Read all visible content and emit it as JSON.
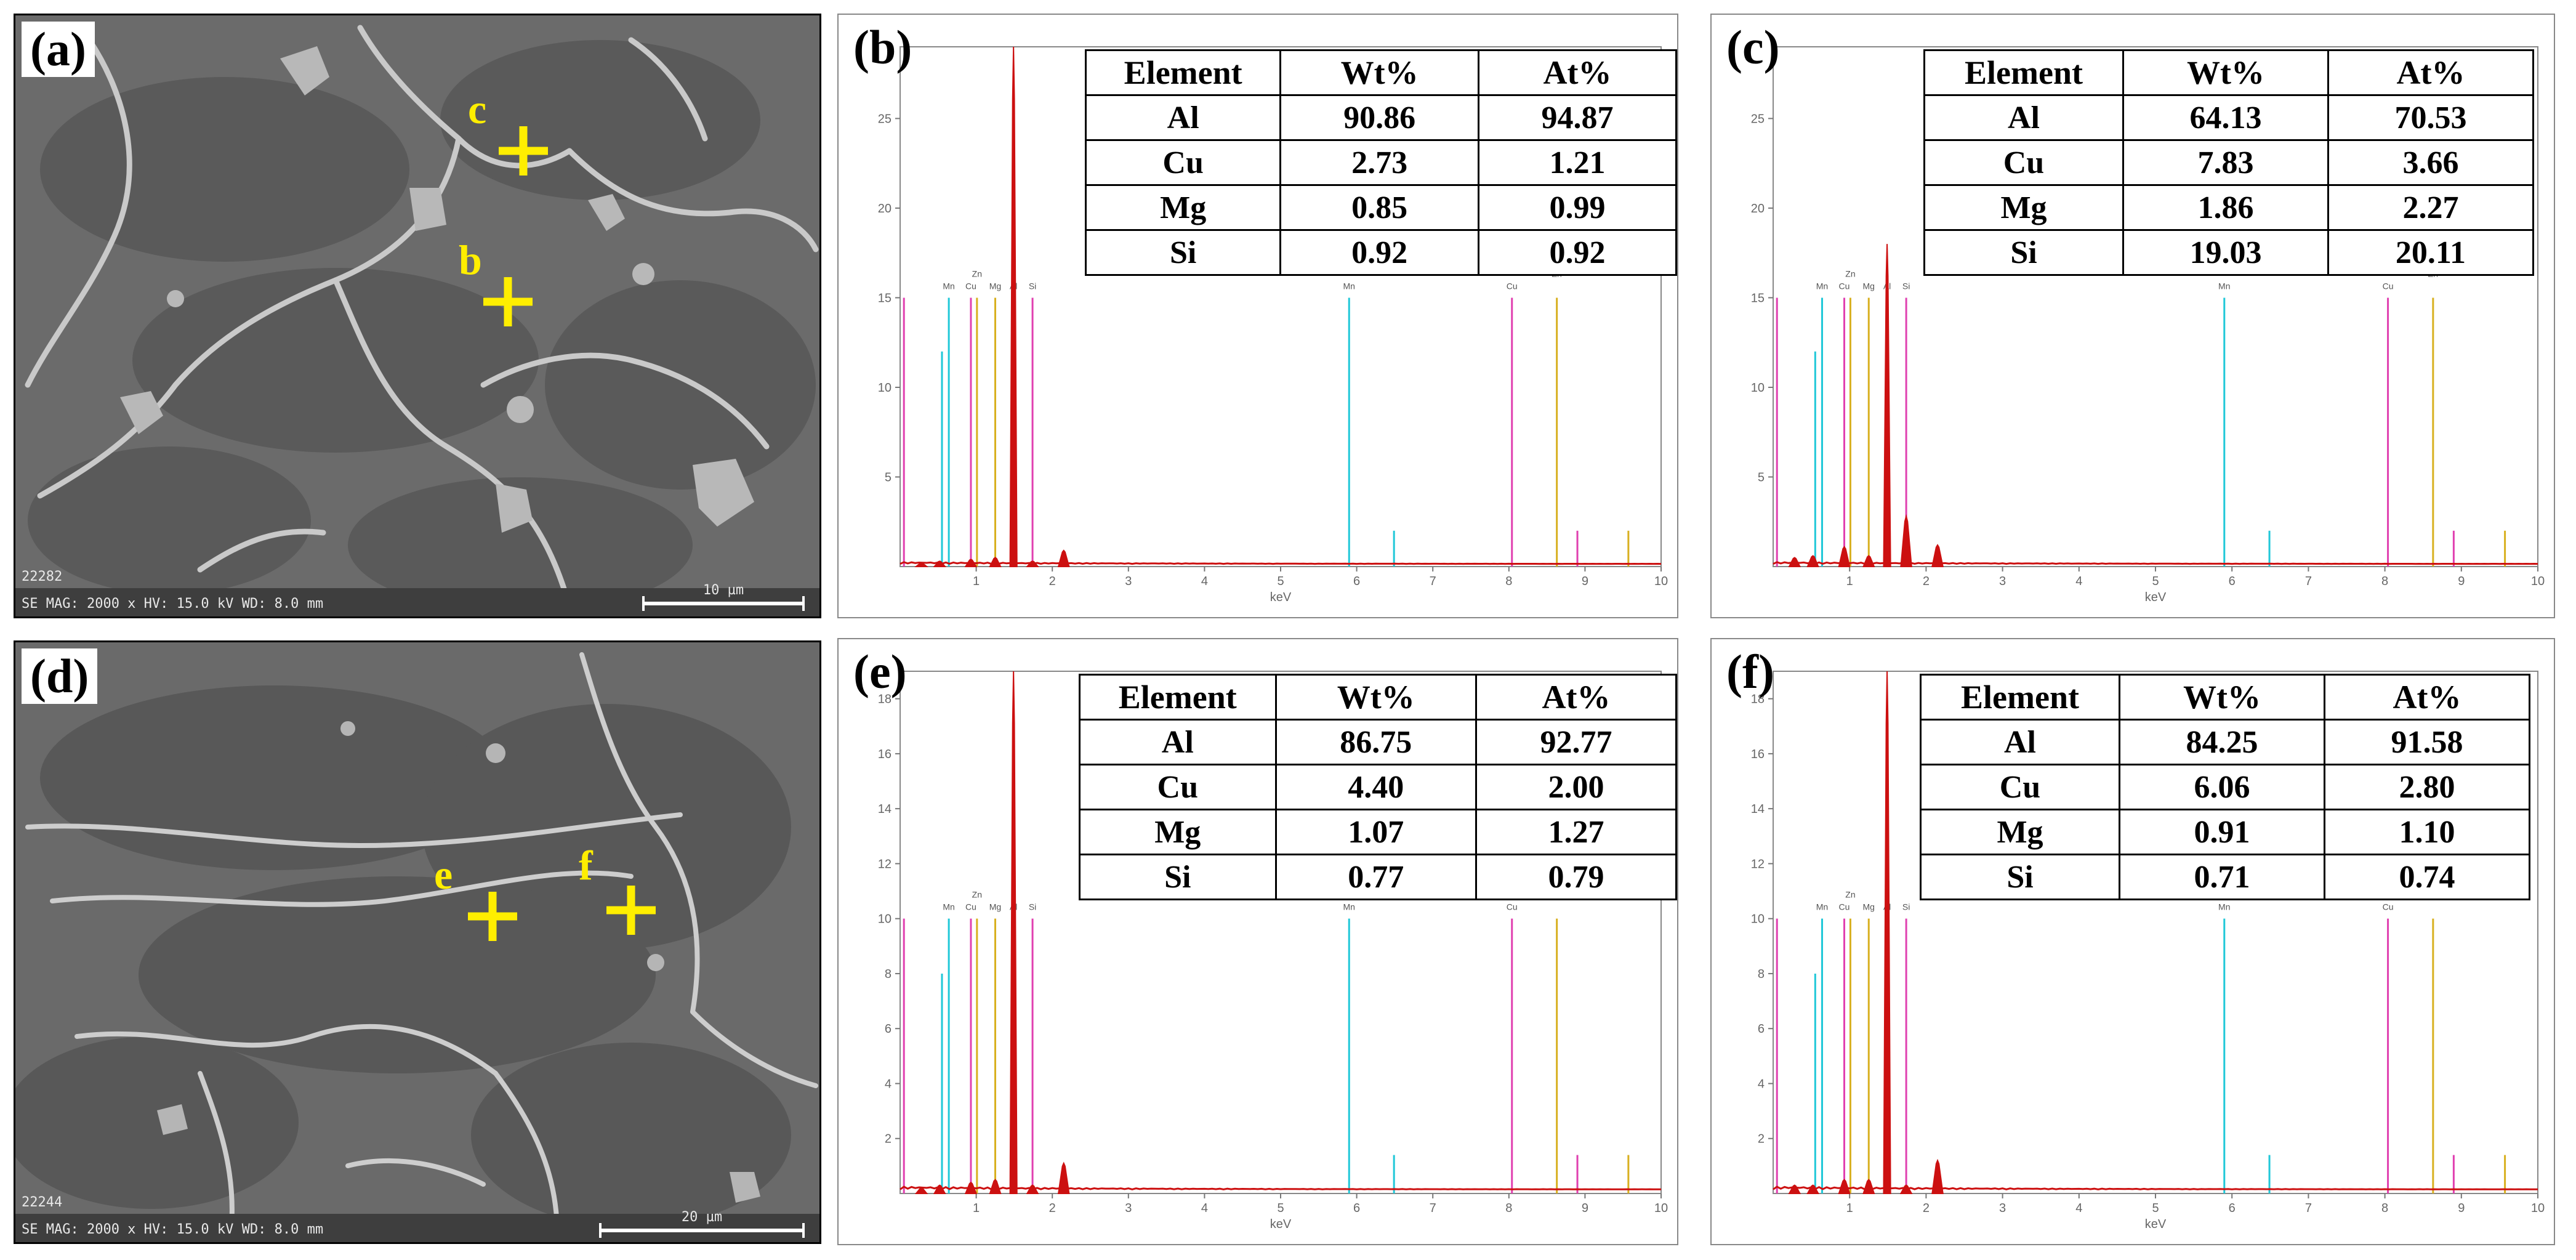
{
  "figure": {
    "sem_panels": [
      {
        "label": "(a)",
        "markers": [
          {
            "letter": "c"
          },
          {
            "letter": "b"
          }
        ],
        "scale_bar": "10 µm",
        "footer_id": "22282",
        "footer_text": "SE MAG: 2000 x HV: 15.0 kV WD: 8.0 mm"
      },
      {
        "label": "(d)",
        "markers": [
          {
            "letter": "e"
          },
          {
            "letter": "f"
          }
        ],
        "scale_bar": "20 µm",
        "footer_id": "22244",
        "footer_text": "SE MAG: 2000 x HV: 15.0 kV WD: 8.0 mm"
      }
    ],
    "colors": {
      "spectrum": "#cc1010",
      "mn": "#20c8d8",
      "cu": "#e040b0",
      "zn": "#d8b020",
      "marker": "#ffee00"
    }
  },
  "chart_data": [
    {
      "label": "(b)",
      "type": "bar",
      "xlabel": "keV",
      "xlim": [
        0,
        10
      ],
      "ylim": [
        0,
        29
      ],
      "yticks": [
        5,
        10,
        15,
        20,
        25
      ],
      "xticks": [
        1,
        2,
        3,
        4,
        5,
        6,
        7,
        8,
        9,
        10
      ],
      "peak_labels": [
        "Mn",
        "Zn",
        "Cu",
        "Mg",
        "Al",
        "Si",
        "Mn",
        "Cu",
        "Zn"
      ],
      "spectrum": {
        "x": [
          0.28,
          0.52,
          0.93,
          1.25,
          1.49,
          1.74,
          2.15
        ],
        "y": [
          0.2,
          0.3,
          0.4,
          0.5,
          29.0,
          0.3,
          0.9
        ]
      },
      "marker_lines": {
        "x": [
          0.05,
          0.55,
          0.64,
          0.93,
          1.01,
          1.25,
          1.74,
          5.9,
          6.49,
          8.04,
          8.63,
          8.9,
          9.57
        ],
        "h": [
          15,
          12,
          15,
          15,
          15,
          15,
          15,
          15,
          2,
          15,
          15,
          2,
          2
        ]
      },
      "table": {
        "headers": [
          "Element",
          "Wt%",
          "At%"
        ],
        "rows": [
          [
            "Al",
            "90.86",
            "94.87"
          ],
          [
            "Cu",
            "2.73",
            "1.21"
          ],
          [
            "Mg",
            "0.85",
            "0.99"
          ],
          [
            "Si",
            "0.92",
            "0.92"
          ]
        ]
      }
    },
    {
      "label": "(c)",
      "type": "bar",
      "xlabel": "keV",
      "xlim": [
        0,
        10
      ],
      "ylim": [
        0,
        29
      ],
      "yticks": [
        5,
        10,
        15,
        20,
        25
      ],
      "xticks": [
        1,
        2,
        3,
        4,
        5,
        6,
        7,
        8,
        9,
        10
      ],
      "peak_labels": [
        "Mn",
        "Zn",
        "Cu",
        "Mg",
        "Al",
        "Si",
        "Mn",
        "Cu",
        "Zn"
      ],
      "spectrum": {
        "x": [
          0.28,
          0.52,
          0.93,
          1.25,
          1.49,
          1.74,
          2.15
        ],
        "y": [
          0.5,
          0.6,
          1.1,
          0.6,
          18.0,
          2.8,
          1.2
        ]
      },
      "marker_lines": {
        "x": [
          0.05,
          0.55,
          0.64,
          0.93,
          1.01,
          1.25,
          1.74,
          5.9,
          6.49,
          8.04,
          8.63,
          8.9,
          9.57
        ],
        "h": [
          15,
          12,
          15,
          15,
          15,
          15,
          15,
          15,
          2,
          15,
          15,
          2,
          2
        ]
      },
      "table": {
        "headers": [
          "Element",
          "Wt%",
          "At%"
        ],
        "rows": [
          [
            "Al",
            "64.13",
            "70.53"
          ],
          [
            "Cu",
            "7.83",
            "3.66"
          ],
          [
            "Mg",
            "1.86",
            "2.27"
          ],
          [
            "Si",
            "19.03",
            "20.11"
          ]
        ]
      }
    },
    {
      "label": "(e)",
      "type": "bar",
      "xlabel": "keV",
      "xlim": [
        0,
        10
      ],
      "ylim": [
        0,
        19
      ],
      "yticks": [
        2,
        4,
        6,
        8,
        10,
        12,
        14,
        16,
        18
      ],
      "xticks": [
        1,
        2,
        3,
        4,
        5,
        6,
        7,
        8,
        9,
        10
      ],
      "peak_labels": [
        "Mn",
        "Zn",
        "Cu",
        "Mg",
        "Al",
        "Si",
        "Mn",
        "Cu",
        "Zn"
      ],
      "spectrum": {
        "x": [
          0.28,
          0.52,
          0.93,
          1.25,
          1.49,
          1.74,
          2.15
        ],
        "y": [
          0.2,
          0.3,
          0.4,
          0.5,
          19.0,
          0.3,
          1.1
        ]
      },
      "marker_lines": {
        "x": [
          0.05,
          0.55,
          0.64,
          0.93,
          1.01,
          1.25,
          1.74,
          5.9,
          6.49,
          8.04,
          8.63,
          8.9,
          9.57
        ],
        "h": [
          10,
          8,
          10,
          10,
          10,
          10,
          10,
          10,
          1.4,
          10,
          10,
          1.4,
          1.4
        ]
      },
      "table": {
        "headers": [
          "Element",
          "Wt%",
          "At%"
        ],
        "rows": [
          [
            "Al",
            "86.75",
            "92.77"
          ],
          [
            "Cu",
            "4.40",
            "2.00"
          ],
          [
            "Mg",
            "1.07",
            "1.27"
          ],
          [
            "Si",
            "0.77",
            "0.79"
          ]
        ]
      }
    },
    {
      "label": "(f)",
      "type": "bar",
      "xlabel": "keV",
      "xlim": [
        0,
        10
      ],
      "ylim": [
        0,
        19
      ],
      "yticks": [
        2,
        4,
        6,
        8,
        10,
        12,
        14,
        16,
        18
      ],
      "xticks": [
        1,
        2,
        3,
        4,
        5,
        6,
        7,
        8,
        9,
        10
      ],
      "peak_labels": [
        "Mn",
        "Zn",
        "Cu",
        "Mg",
        "Al",
        "Si",
        "Mn",
        "Cu",
        "Zn"
      ],
      "spectrum": {
        "x": [
          0.28,
          0.52,
          0.93,
          1.25,
          1.49,
          1.74,
          2.15
        ],
        "y": [
          0.3,
          0.3,
          0.5,
          0.5,
          19.0,
          0.3,
          1.2
        ]
      },
      "marker_lines": {
        "x": [
          0.05,
          0.55,
          0.64,
          0.93,
          1.01,
          1.25,
          1.74,
          5.9,
          6.49,
          8.04,
          8.63,
          8.9,
          9.57
        ],
        "h": [
          10,
          8,
          10,
          10,
          10,
          10,
          10,
          10,
          1.4,
          10,
          10,
          1.4,
          1.4
        ]
      },
      "table": {
        "headers": [
          "Element",
          "Wt%",
          "At%"
        ],
        "rows": [
          [
            "Al",
            "84.25",
            "91.58"
          ],
          [
            "Cu",
            "6.06",
            "2.80"
          ],
          [
            "Mg",
            "0.91",
            "1.10"
          ],
          [
            "Si",
            "0.71",
            "0.74"
          ]
        ]
      }
    }
  ]
}
